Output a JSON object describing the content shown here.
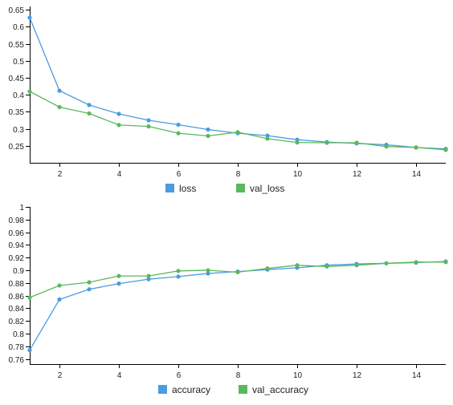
{
  "chart_data": [
    {
      "type": "line",
      "x": [
        1,
        2,
        3,
        4,
        5,
        6,
        7,
        8,
        9,
        10,
        11,
        12,
        13,
        14,
        15
      ],
      "xticks": [
        2,
        4,
        6,
        8,
        10,
        12,
        14
      ],
      "xlim": [
        1,
        15
      ],
      "ylim": [
        0.2,
        0.66
      ],
      "yticks": [
        0.25,
        0.3,
        0.35,
        0.4,
        0.45,
        0.5,
        0.55,
        0.6,
        0.65
      ],
      "yticks_text": [
        "0.25",
        "0.3",
        "0.35",
        "0.4",
        "0.45",
        "0.5",
        "0.55",
        "0.6",
        "0.65"
      ],
      "legend_position": "bottom",
      "grid": false,
      "series": [
        {
          "name": "loss",
          "color": "#4a9be0",
          "values": [
            0.627,
            0.412,
            0.37,
            0.344,
            0.325,
            0.312,
            0.298,
            0.287,
            0.28,
            0.268,
            0.261,
            0.257,
            0.253,
            0.245,
            0.241
          ]
        },
        {
          "name": "val_loss",
          "color": "#5cb85c",
          "values": [
            0.41,
            0.364,
            0.345,
            0.311,
            0.307,
            0.287,
            0.279,
            0.29,
            0.271,
            0.26,
            0.259,
            0.259,
            0.248,
            0.245,
            0.238
          ]
        }
      ]
    },
    {
      "type": "line",
      "x": [
        1,
        2,
        3,
        4,
        5,
        6,
        7,
        8,
        9,
        10,
        11,
        12,
        13,
        14,
        15
      ],
      "xticks": [
        2,
        4,
        6,
        8,
        10,
        12,
        14
      ],
      "xlim": [
        1,
        15
      ],
      "ylim": [
        0.752,
        1.0
      ],
      "yticks": [
        0.76,
        0.78,
        0.8,
        0.82,
        0.84,
        0.86,
        0.88,
        0.9,
        0.92,
        0.94,
        0.96,
        0.98,
        1.0
      ],
      "yticks_text": [
        "0.76",
        "0.78",
        "0.8",
        "0.82",
        "0.84",
        "0.86",
        "0.88",
        "0.9",
        "0.92",
        "0.94",
        "0.96",
        "0.98",
        "1"
      ],
      "legend_position": "bottom",
      "grid": false,
      "series": [
        {
          "name": "accuracy",
          "color": "#4a9be0",
          "values": [
            0.774,
            0.854,
            0.87,
            0.879,
            0.886,
            0.89,
            0.895,
            0.898,
            0.901,
            0.904,
            0.908,
            0.91,
            0.911,
            0.912,
            0.914
          ]
        },
        {
          "name": "val_accuracy",
          "color": "#5cb85c",
          "values": [
            0.857,
            0.876,
            0.881,
            0.891,
            0.891,
            0.899,
            0.9,
            0.897,
            0.903,
            0.908,
            0.906,
            0.908,
            0.911,
            0.913,
            0.913
          ]
        }
      ]
    }
  ]
}
